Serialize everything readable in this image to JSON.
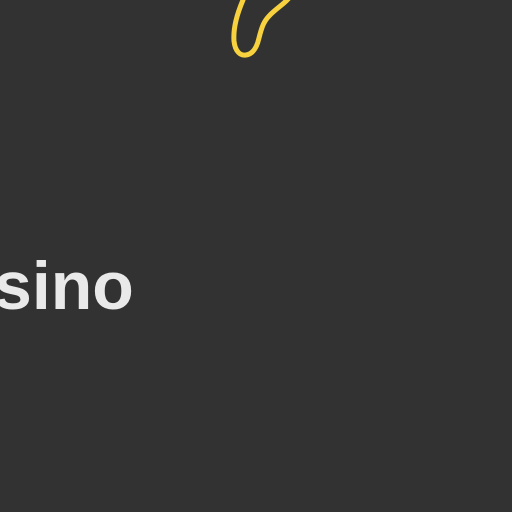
{
  "background_color": "#323232",
  "brand": {
    "text": "sino",
    "text_color": "#e9e9e9"
  },
  "logo": {
    "icon": "yellow-outline-logo-icon",
    "stroke_color": "#f7d23e"
  }
}
